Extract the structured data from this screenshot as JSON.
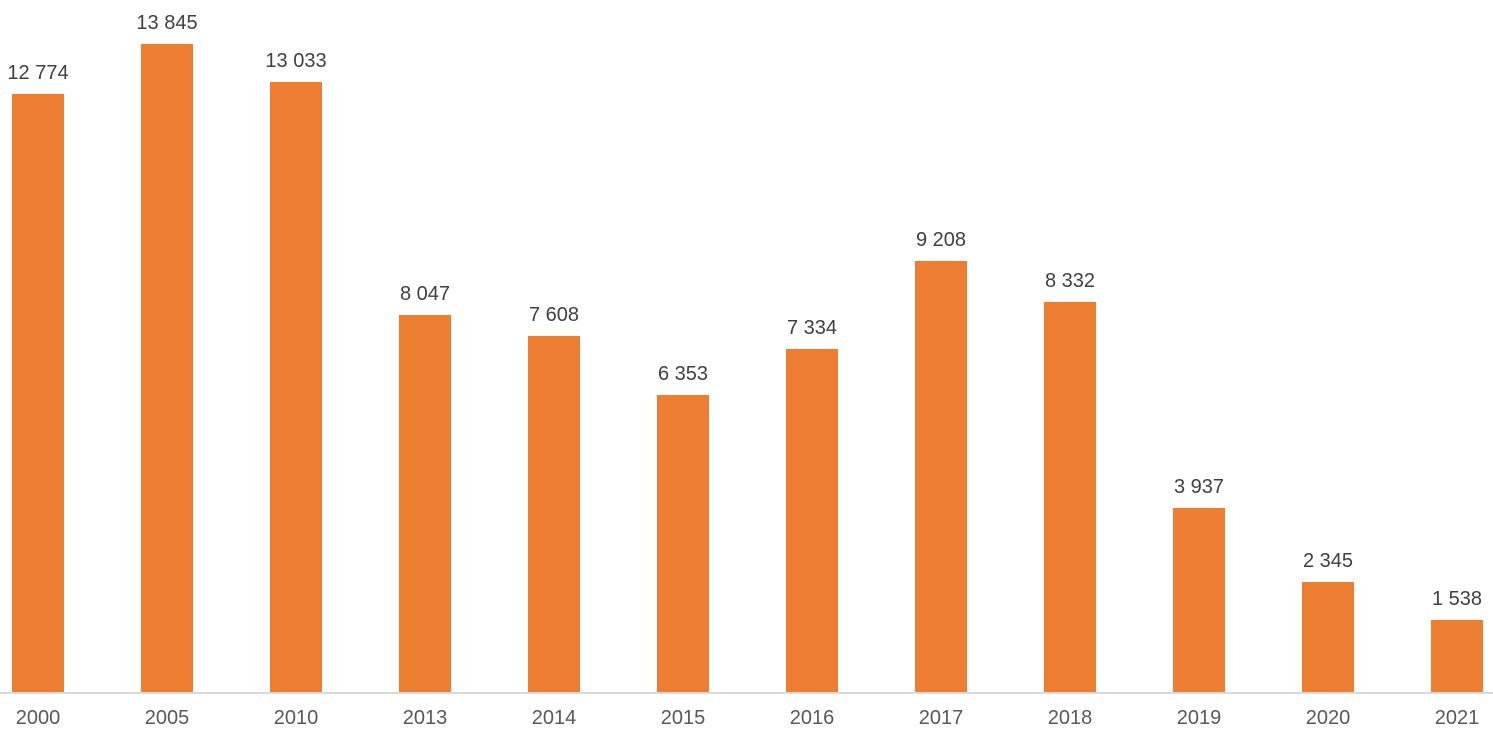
{
  "chart_data": {
    "type": "bar",
    "title": "",
    "xlabel": "",
    "ylabel": "",
    "categories": [
      "2000",
      "2005",
      "2010",
      "2013",
      "2014",
      "2015",
      "2016",
      "2017",
      "2018",
      "2019",
      "2020",
      "2021"
    ],
    "values": [
      12774,
      13845,
      13033,
      8047,
      7608,
      6353,
      7334,
      9208,
      8332,
      3937,
      2345,
      1538
    ],
    "data_labels": [
      "12 774",
      "13 845",
      "13 033",
      "8 047",
      "7 608",
      "6 353",
      "7 334",
      "9 208",
      "8 332",
      "3 937",
      "2 345",
      "1 538"
    ],
    "ylim": [
      0,
      13845
    ],
    "grid": false,
    "legend": false,
    "y_axis_visible": false,
    "colors": {
      "bar": "#ED7D31",
      "data_label": "#404040",
      "category_label": "#595959",
      "axis_line": "#D9D9D9",
      "background": "#FFFFFF"
    }
  }
}
